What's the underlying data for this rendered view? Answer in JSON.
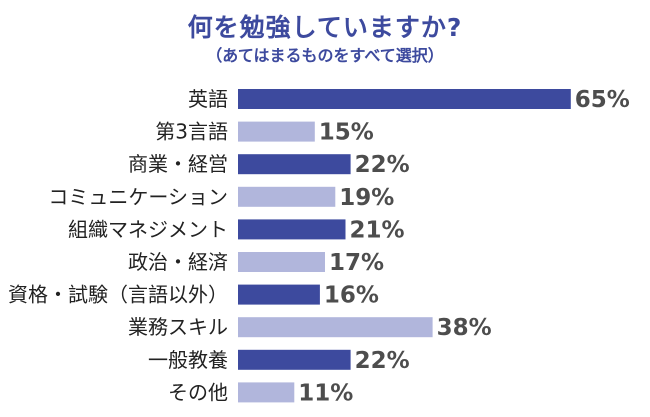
{
  "colors": {
    "title": "#3d4a9e",
    "bar_dark": "#3d4a9e",
    "bar_light": "#b1b6dc"
  },
  "chart_data": {
    "type": "bar",
    "orientation": "horizontal",
    "title": "何を勉強していますか?",
    "subtitle": "（あてはまるものをすべて選択）",
    "categories": [
      "英語",
      "第3言語",
      "商業・経営",
      "コミュニケーション",
      "組織マネジメント",
      "政治・経済",
      "資格・試験（言語以外）",
      "業務スキル",
      "一般教養",
      "その他"
    ],
    "values": [
      65,
      15,
      22,
      19,
      21,
      17,
      16,
      38,
      22,
      11
    ],
    "value_labels": [
      "65%",
      "15%",
      "22%",
      "19%",
      "21%",
      "17%",
      "16%",
      "38%",
      "22%",
      "11%"
    ],
    "unit": "%",
    "xlim": [
      0,
      100
    ],
    "grid": false,
    "legend": "none"
  }
}
